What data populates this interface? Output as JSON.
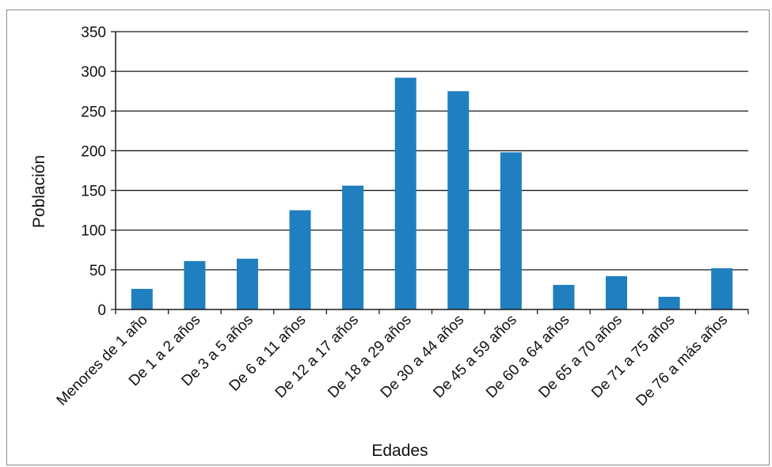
{
  "chart_data": {
    "type": "bar",
    "title": "",
    "xlabel": "Edades",
    "ylabel": "Población",
    "ylim": [
      0,
      350
    ],
    "yticks": [
      0,
      50,
      100,
      150,
      200,
      250,
      300,
      350
    ],
    "grid": true,
    "legend": "none",
    "bar_color": "#1f7fbf",
    "categories": [
      "Menores de 1 año",
      "De 1 a 2 años",
      "De 3 a 5 años",
      "De 6 a 11 años",
      "De 12 a 17 años",
      "De 18 a 29 años",
      "De 30 a 44 años",
      "De 45 a 59 años",
      "De 60 a 64 años",
      "De 65 a 70 años",
      "De 71 a 75 años",
      "De 76 a más años"
    ],
    "values": [
      26,
      61,
      64,
      125,
      156,
      292,
      275,
      198,
      31,
      42,
      16,
      52
    ]
  }
}
